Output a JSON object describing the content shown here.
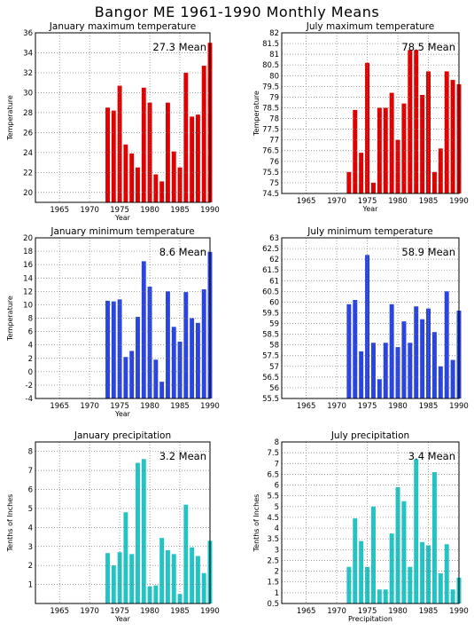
{
  "title": "Bangor ME   1961-1990 Monthly Means",
  "chart_data": [
    {
      "type": "bar",
      "title": "January maximum temperature",
      "mean_label": "27.3  Mean",
      "color": "#e00000",
      "xlabel": "Year",
      "ylabel": "Temperature",
      "xlim": [
        1961,
        1990
      ],
      "ylim": [
        19,
        36
      ],
      "yticks": [
        "20",
        "22",
        "24",
        "26",
        "28",
        "30",
        "32",
        "34",
        "36"
      ],
      "ytick_values": [
        20,
        22,
        24,
        26,
        28,
        30,
        32,
        34,
        36
      ],
      "xticks": [
        "1965",
        "1970",
        "1975",
        "1980",
        "1985",
        "1990"
      ],
      "xtick_values": [
        1965,
        1970,
        1975,
        1980,
        1985,
        1990
      ],
      "x": [
        1973,
        1974,
        1975,
        1976,
        1977,
        1978,
        1979,
        1980,
        1981,
        1982,
        1983,
        1984,
        1985,
        1986,
        1987,
        1988,
        1989,
        1990
      ],
      "values": [
        28.5,
        28.2,
        30.7,
        24.8,
        23.9,
        22.5,
        30.5,
        29.0,
        21.8,
        21.1,
        29.0,
        24.1,
        22.5,
        32.0,
        27.6,
        27.8,
        32.7,
        35.0
      ]
    },
    {
      "type": "bar",
      "title": "July maximum temperature",
      "mean_label": "78.5  Mean",
      "color": "#e00000",
      "xlabel": "Year",
      "ylabel": "Temperature",
      "xlim": [
        1961,
        1990
      ],
      "ylim": [
        74.5,
        82
      ],
      "yticks": [
        "74.5",
        "75",
        "75.5",
        "76",
        "76.5",
        "77",
        "77.5",
        "78",
        "78.5",
        "79",
        "79.5",
        "80",
        "80.5",
        "81",
        "81.5",
        "82"
      ],
      "ytick_values": [
        74.5,
        75,
        75.5,
        76,
        76.5,
        77,
        77.5,
        78,
        78.5,
        79,
        79.5,
        80,
        80.5,
        81,
        81.5,
        82
      ],
      "xticks": [
        "1965",
        "1970",
        "1975",
        "1980",
        "1985",
        "1990"
      ],
      "xtick_values": [
        1965,
        1970,
        1975,
        1980,
        1985,
        1990
      ],
      "x": [
        1972,
        1973,
        1974,
        1975,
        1976,
        1977,
        1978,
        1979,
        1980,
        1981,
        1982,
        1983,
        1984,
        1985,
        1986,
        1987,
        1988,
        1989,
        1990
      ],
      "values": [
        75.5,
        78.4,
        76.4,
        80.6,
        75.0,
        78.5,
        78.5,
        79.2,
        77.0,
        78.7,
        81.2,
        81.2,
        79.1,
        80.2,
        75.5,
        76.6,
        80.2,
        79.8,
        79.6
      ]
    },
    {
      "type": "bar",
      "title": "January minimum temperature",
      "mean_label": "8.6  Mean",
      "color": "#2a44e0",
      "xlabel": "Year",
      "ylabel": "Temperature",
      "xlim": [
        1961,
        1990
      ],
      "ylim": [
        -4,
        20
      ],
      "yticks": [
        "-4",
        "-2",
        "0",
        "2",
        "4",
        "6",
        "8",
        "10",
        "12",
        "14",
        "16",
        "18",
        "20"
      ],
      "ytick_values": [
        -4,
        -2,
        0,
        2,
        4,
        6,
        8,
        10,
        12,
        14,
        16,
        18,
        20
      ],
      "xticks": [
        "1965",
        "1970",
        "1975",
        "1980",
        "1985",
        "1990"
      ],
      "xtick_values": [
        1965,
        1970,
        1975,
        1980,
        1985,
        1990
      ],
      "x": [
        1973,
        1974,
        1975,
        1976,
        1977,
        1978,
        1979,
        1980,
        1981,
        1982,
        1983,
        1984,
        1985,
        1986,
        1987,
        1988,
        1989,
        1990
      ],
      "values": [
        10.6,
        10.5,
        10.8,
        2.2,
        3.1,
        8.2,
        16.5,
        12.7,
        1.8,
        -1.5,
        12.0,
        6.7,
        4.5,
        11.9,
        8.0,
        7.3,
        12.3,
        17.9
      ]
    },
    {
      "type": "bar",
      "title": "July minimum temperature",
      "mean_label": "58.9  Mean",
      "color": "#2a44e0",
      "xlabel": "",
      "ylabel": "",
      "xlim": [
        1961,
        1990
      ],
      "ylim": [
        55.5,
        63
      ],
      "yticks": [
        "55.5",
        "56",
        "56.5",
        "57",
        "57.5",
        "58",
        "58.5",
        "59",
        "59.5",
        "60",
        "60.5",
        "61",
        "61.5",
        "62",
        "62.5",
        "63"
      ],
      "ytick_values": [
        55.5,
        56,
        56.5,
        57,
        57.5,
        58,
        58.5,
        59,
        59.5,
        60,
        60.5,
        61,
        61.5,
        62,
        62.5,
        63
      ],
      "xticks": [
        "1965",
        "1970",
        "1975",
        "1980",
        "1985",
        "1990"
      ],
      "xtick_values": [
        1965,
        1970,
        1975,
        1980,
        1985,
        1990
      ],
      "x": [
        1972,
        1973,
        1974,
        1975,
        1976,
        1977,
        1978,
        1979,
        1980,
        1981,
        1982,
        1983,
        1984,
        1985,
        1986,
        1987,
        1988,
        1989,
        1990
      ],
      "values": [
        59.9,
        60.1,
        57.7,
        62.2,
        58.1,
        56.4,
        58.1,
        59.9,
        57.9,
        59.1,
        58.1,
        59.8,
        59.2,
        59.7,
        58.6,
        57.0,
        60.5,
        57.3,
        59.6
      ]
    },
    {
      "type": "bar",
      "title": "January precipitation",
      "mean_label": "3.2  Mean",
      "color": "#22c4c4",
      "xlabel": "Year",
      "ylabel": "Tenths of Inches",
      "xlim": [
        1961,
        1990
      ],
      "ylim": [
        0,
        8.5
      ],
      "yticks": [
        "1",
        "2",
        "3",
        "4",
        "5",
        "6",
        "7",
        "8"
      ],
      "ytick_values": [
        1,
        2,
        3,
        4,
        5,
        6,
        7,
        8
      ],
      "xticks": [
        "1965",
        "1970",
        "1975",
        "1980",
        "1985",
        "1990"
      ],
      "xtick_values": [
        1965,
        1970,
        1975,
        1980,
        1985,
        1990
      ],
      "x": [
        1973,
        1974,
        1975,
        1976,
        1977,
        1978,
        1979,
        1980,
        1981,
        1982,
        1983,
        1984,
        1985,
        1986,
        1987,
        1988,
        1989,
        1990
      ],
      "values": [
        2.65,
        2.0,
        2.7,
        4.8,
        2.6,
        7.4,
        7.6,
        0.9,
        0.95,
        3.45,
        2.8,
        2.6,
        0.5,
        5.2,
        2.95,
        2.5,
        1.6,
        3.3
      ]
    },
    {
      "type": "bar",
      "title": "July precipitation",
      "mean_label": "3.4  Mean",
      "color": "#22c4c4",
      "xlabel": "Precipitation",
      "ylabel": "Tenths of Inches",
      "xlim": [
        1961,
        1990
      ],
      "ylim": [
        0.5,
        8
      ],
      "yticks": [
        "0.5",
        "1",
        "1.5",
        "2",
        "2.5",
        "3",
        "3.5",
        "4",
        "4.5",
        "5",
        "5.5",
        "6",
        "6.5",
        "7",
        "7.5",
        "8"
      ],
      "ytick_values": [
        0.5,
        1,
        1.5,
        2,
        2.5,
        3,
        3.5,
        4,
        4.5,
        5,
        5.5,
        6,
        6.5,
        7,
        7.5,
        8
      ],
      "xticks": [
        "1965",
        "1970",
        "1975",
        "1980",
        "1985",
        "1990"
      ],
      "xtick_values": [
        1965,
        1970,
        1975,
        1980,
        1985,
        1990
      ],
      "x": [
        1972,
        1973,
        1974,
        1975,
        1976,
        1977,
        1978,
        1979,
        1980,
        1981,
        1982,
        1983,
        1984,
        1985,
        1986,
        1987,
        1988,
        1989,
        1990
      ],
      "values": [
        2.2,
        4.45,
        3.4,
        2.2,
        5.0,
        1.15,
        1.15,
        3.75,
        5.9,
        5.25,
        2.2,
        7.2,
        3.35,
        3.2,
        6.6,
        1.9,
        3.25,
        1.15,
        1.7
      ]
    }
  ]
}
